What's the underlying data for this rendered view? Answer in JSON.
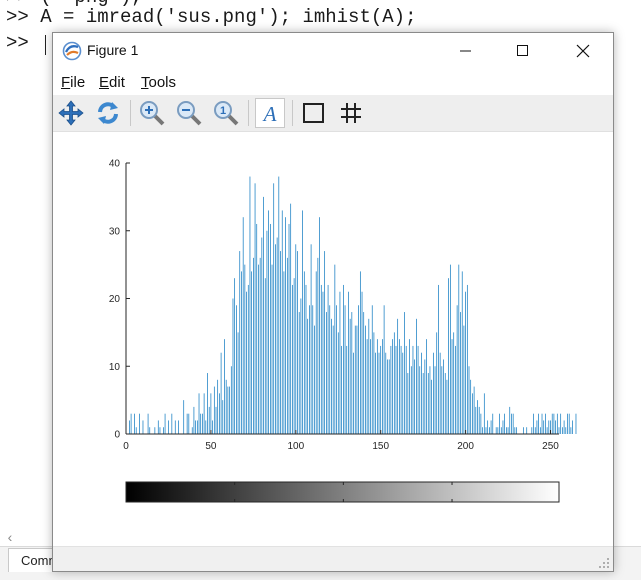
{
  "command_window": {
    "prev_line_fragment": ">> (  png ),",
    "line1": ">> A = imread('sus.png'); imhist(A);",
    "prompt": ">>",
    "tab_label": "Command Window"
  },
  "figure_window": {
    "title": "Figure 1",
    "menus": [
      {
        "underlined": "F",
        "rest": "ile"
      },
      {
        "underlined": "E",
        "rest": "dit"
      },
      {
        "underlined": "T",
        "rest": "ools"
      }
    ],
    "toolbar_icons": [
      "pan-icon",
      "rotate-icon",
      "zoom-in-icon",
      "zoom-out-icon",
      "zoom-reset-icon",
      "text-insert-icon",
      "axes-box-icon",
      "grid-icon"
    ]
  },
  "colors": {
    "bar": "#0072bd",
    "axis": "#262626"
  },
  "chart_data": {
    "type": "bar",
    "title": "",
    "xlabel": "",
    "ylabel": "",
    "xlim": [
      0,
      255
    ],
    "ylim": [
      0,
      40
    ],
    "xticks": [
      0,
      50,
      100,
      150,
      200,
      250
    ],
    "yticks": [
      0,
      10,
      20,
      30,
      40
    ],
    "grid": false,
    "x_start": 0,
    "values": [
      3,
      0,
      2,
      3,
      0,
      3,
      1,
      0,
      3,
      0,
      2,
      0,
      0,
      3,
      1,
      0,
      0,
      1,
      0,
      2,
      1,
      0,
      1,
      3,
      0,
      2,
      0,
      3,
      0,
      2,
      0,
      2,
      0,
      0,
      5,
      0,
      3,
      3,
      0,
      1,
      4,
      2,
      2,
      6,
      3,
      3,
      6,
      2,
      9,
      4,
      6,
      2,
      7,
      4,
      8,
      6,
      12,
      5,
      14,
      8,
      7,
      7,
      10,
      20,
      23,
      19,
      15,
      27,
      24,
      32,
      25,
      21,
      22,
      38,
      24,
      26,
      37,
      31,
      25,
      26,
      29,
      35,
      23,
      30,
      33,
      31,
      25,
      37,
      28,
      29,
      38,
      27,
      33,
      24,
      32,
      26,
      31,
      34,
      22,
      23,
      28,
      27,
      18,
      20,
      33,
      24,
      22,
      17,
      19,
      28,
      19,
      16,
      24,
      26,
      32,
      22,
      21,
      27,
      18,
      22,
      19,
      17,
      16,
      25,
      19,
      15,
      21,
      13,
      22,
      19,
      13,
      21,
      17,
      18,
      12,
      16,
      16,
      19,
      24,
      21,
      18,
      16,
      14,
      17,
      14,
      19,
      15,
      12,
      14,
      12,
      13,
      14,
      19,
      12,
      11,
      11,
      13,
      14,
      15,
      13,
      17,
      14,
      13,
      12,
      18,
      13,
      9,
      14,
      10,
      13,
      11,
      17,
      13,
      10,
      12,
      9,
      11,
      14,
      9,
      10,
      8,
      12,
      10,
      15,
      22,
      12,
      10,
      11,
      9,
      8,
      23,
      25,
      14,
      15,
      13,
      19,
      25,
      18,
      24,
      16,
      21,
      22,
      10,
      8,
      6,
      7,
      4,
      5,
      4,
      3,
      1,
      6,
      1,
      2,
      1,
      2,
      3,
      0,
      1,
      1,
      3,
      1,
      2,
      3,
      1,
      1,
      4,
      3,
      3,
      1,
      1,
      0,
      0,
      0,
      1,
      0,
      1,
      0,
      0,
      1,
      3,
      1,
      2,
      3,
      1,
      3,
      2,
      3,
      1,
      2,
      2,
      3,
      3,
      2,
      3,
      1,
      3,
      1,
      2,
      1,
      3,
      3,
      1,
      2,
      0,
      3
    ],
    "colorbar": {
      "range": [
        0,
        255
      ],
      "gradient": [
        "#000000",
        "#ffffff"
      ]
    }
  }
}
